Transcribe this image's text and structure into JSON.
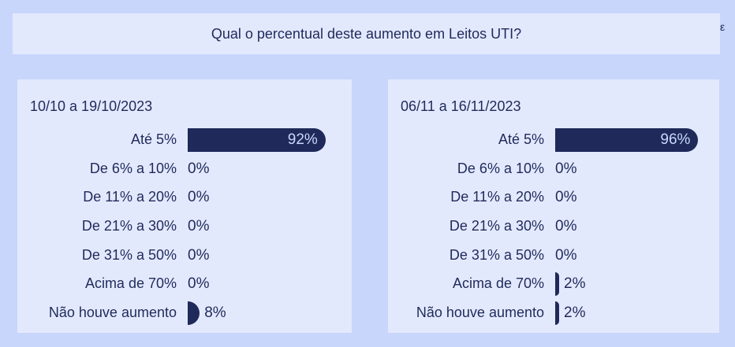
{
  "question": "Qual o percentual deste aumento em Leitos UTI?",
  "corner_glyph": "ε",
  "chart_data": [
    {
      "type": "bar",
      "orientation": "horizontal",
      "title": "10/10 a 19/10/2023",
      "categories": [
        "Até 5%",
        "De 6% a 10%",
        "De 11% a 20%",
        "De 21% a 30%",
        "De 31% a 50%",
        "Acima de 70%",
        "Não houve aumento"
      ],
      "values": [
        92,
        0,
        0,
        0,
        0,
        0,
        8
      ],
      "labels": [
        "92%",
        "0%",
        "0%",
        "0%",
        "0%",
        "0%",
        "8%"
      ],
      "xlim": [
        0,
        100
      ],
      "bar_color": "#1f2a5a"
    },
    {
      "type": "bar",
      "orientation": "horizontal",
      "title": "06/11 a 16/11/2023",
      "categories": [
        "Até 5%",
        "De 6% a 10%",
        "De 11% a 20%",
        "De 21% a 30%",
        "De 31% a 50%",
        "Acima de 70%",
        "Não houve aumento"
      ],
      "values": [
        96,
        0,
        0,
        0,
        0,
        2,
        2
      ],
      "labels": [
        "96%",
        "0%",
        "0%",
        "0%",
        "0%",
        "2%",
        "2%"
      ],
      "xlim": [
        0,
        100
      ],
      "bar_color": "#1f2a5a"
    }
  ]
}
